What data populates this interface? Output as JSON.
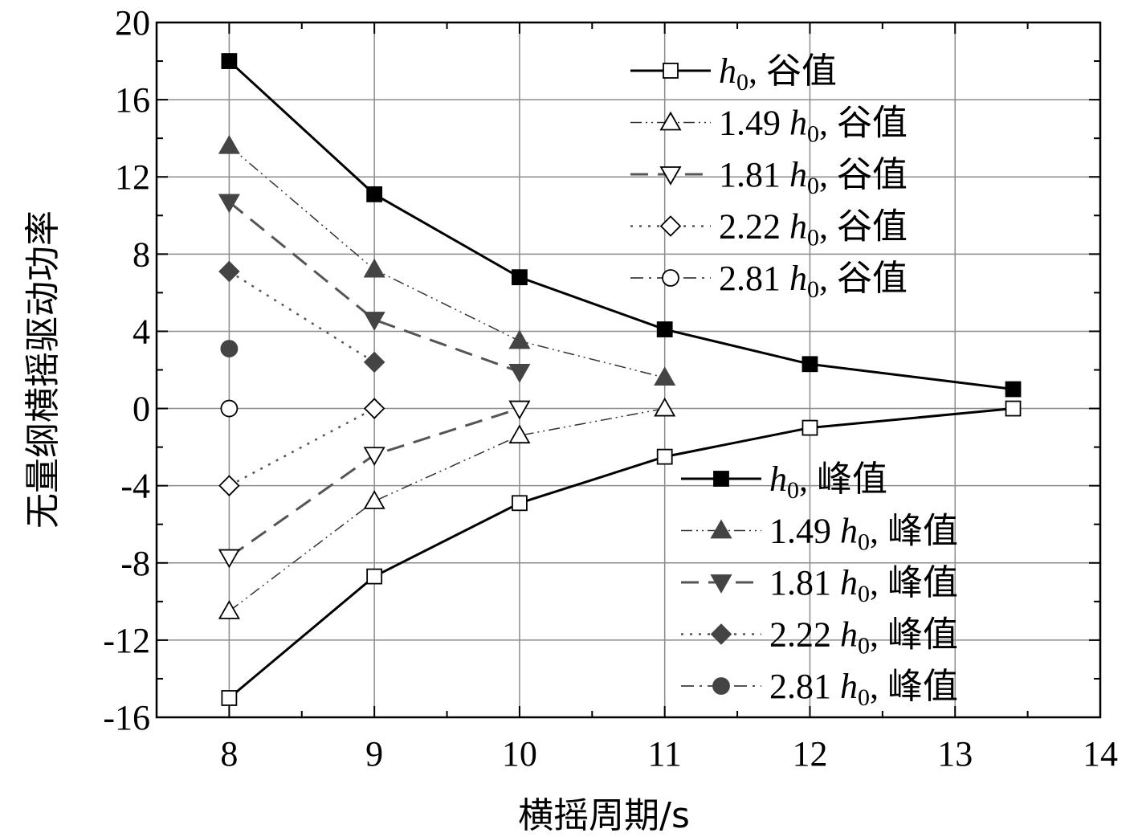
{
  "chart_data": {
    "type": "line",
    "title": "",
    "xlabel": "横摇周期/s",
    "ylabel": "无量纲横摇驱动功率",
    "xlim": [
      7.5,
      14
    ],
    "ylim": [
      -16,
      20
    ],
    "xticks": [
      8,
      9,
      10,
      11,
      12,
      13,
      14
    ],
    "yticks": [
      -16,
      -12,
      -8,
      -4,
      0,
      4,
      8,
      12,
      16,
      20
    ],
    "grid": true,
    "series": [
      {
        "name": "h0, 谷值",
        "coef": "",
        "suffix": ", 谷值",
        "style": "solid",
        "marker": "square",
        "filled": false,
        "color": "#000000",
        "x": [
          8,
          9,
          10,
          11,
          12,
          13.4
        ],
        "y": [
          -15.0,
          -8.7,
          -4.9,
          -2.5,
          -1.0,
          0.0
        ]
      },
      {
        "name": "1.49 h0, 谷值",
        "coef": "1.49 ",
        "suffix": ", 谷值",
        "style": "dashdotdot",
        "marker": "triangle-up",
        "filled": false,
        "color": "#333333",
        "x": [
          8,
          9,
          10,
          11
        ],
        "y": [
          -10.5,
          -4.8,
          -1.4,
          0.0
        ]
      },
      {
        "name": "1.81 h0, 谷值",
        "coef": "1.81 ",
        "suffix": ", 谷值",
        "style": "dash",
        "marker": "triangle-down",
        "filled": false,
        "color": "#555555",
        "x": [
          8,
          9,
          10
        ],
        "y": [
          -7.7,
          -2.4,
          0.0
        ]
      },
      {
        "name": "2.22 h0, 谷值",
        "coef": "2.22 ",
        "suffix": ", 谷值",
        "style": "dot",
        "marker": "diamond",
        "filled": false,
        "color": "#555555",
        "x": [
          8,
          9
        ],
        "y": [
          -4.0,
          0.0
        ]
      },
      {
        "name": "2.81 h0, 谷值",
        "coef": "2.81 ",
        "suffix": ", 谷值",
        "style": "dashdot",
        "marker": "circle",
        "filled": false,
        "color": "#555555",
        "x": [
          8
        ],
        "y": [
          0.0
        ]
      },
      {
        "name": "h0, 峰值",
        "coef": "",
        "suffix": ", 峰值",
        "style": "solid",
        "marker": "square",
        "filled": true,
        "color": "#000000",
        "x": [
          8,
          9,
          10,
          11,
          12,
          13.4
        ],
        "y": [
          18.0,
          11.1,
          6.8,
          4.1,
          2.3,
          1.0
        ]
      },
      {
        "name": "1.49 h0, 峰值",
        "coef": "1.49 ",
        "suffix": ", 峰值",
        "style": "dashdotdot",
        "marker": "triangle-up",
        "filled": true,
        "color": "#333333",
        "x": [
          8,
          9,
          10,
          11
        ],
        "y": [
          13.6,
          7.2,
          3.5,
          1.6
        ]
      },
      {
        "name": "1.81 h0, 峰值",
        "coef": "1.81 ",
        "suffix": ", 峰值",
        "style": "dash",
        "marker": "triangle-down",
        "filled": true,
        "color": "#555555",
        "x": [
          8,
          9,
          10
        ],
        "y": [
          10.7,
          4.6,
          1.9
        ]
      },
      {
        "name": "2.22 h0, 峰值",
        "coef": "2.22 ",
        "suffix": ", 峰值",
        "style": "dot",
        "marker": "diamond",
        "filled": true,
        "color": "#555555",
        "x": [
          8,
          9
        ],
        "y": [
          7.1,
          2.4
        ]
      },
      {
        "name": "2.81 h0, 峰值",
        "coef": "2.81 ",
        "suffix": ", 峰值",
        "style": "dashdot",
        "marker": "circle",
        "filled": true,
        "color": "#555555",
        "x": [
          8
        ],
        "y": [
          3.1
        ]
      }
    ],
    "legends": [
      {
        "placement": "top-right",
        "series": [
          0,
          1,
          2,
          3,
          4
        ]
      },
      {
        "placement": "bottom-right",
        "series": [
          5,
          6,
          7,
          8,
          9
        ]
      }
    ]
  }
}
